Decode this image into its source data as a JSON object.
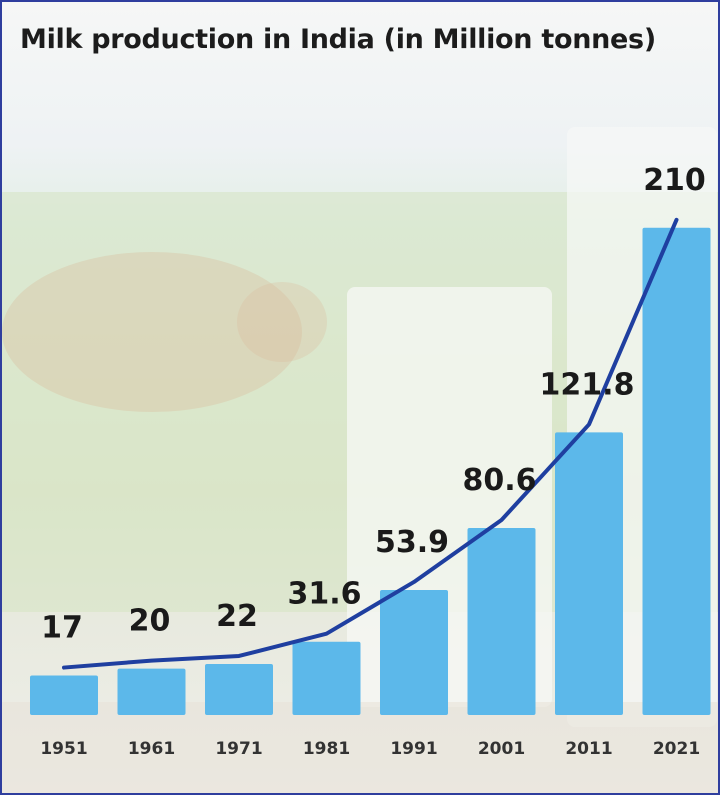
{
  "chart_data": {
    "type": "bar",
    "title": "Milk production in India (in Million tonnes)",
    "xlabel": "",
    "ylabel": "",
    "categories": [
      "1951",
      "1961",
      "1971",
      "1981",
      "1991",
      "2001",
      "2011",
      "2021"
    ],
    "values": [
      17,
      20,
      22,
      31.6,
      53.9,
      80.6,
      121.8,
      210
    ],
    "value_labels": [
      "17",
      "20",
      "22",
      "31.6",
      "53.9",
      "80.6",
      "121.8",
      "210"
    ],
    "trend_line": true,
    "ylim": [
      0,
      240
    ],
    "grid": false,
    "legend": "none",
    "colors": {
      "bar": "#5cb8ea",
      "line": "#1f3fa0",
      "label": "#1a1a1a",
      "tick": "#333333"
    }
  }
}
